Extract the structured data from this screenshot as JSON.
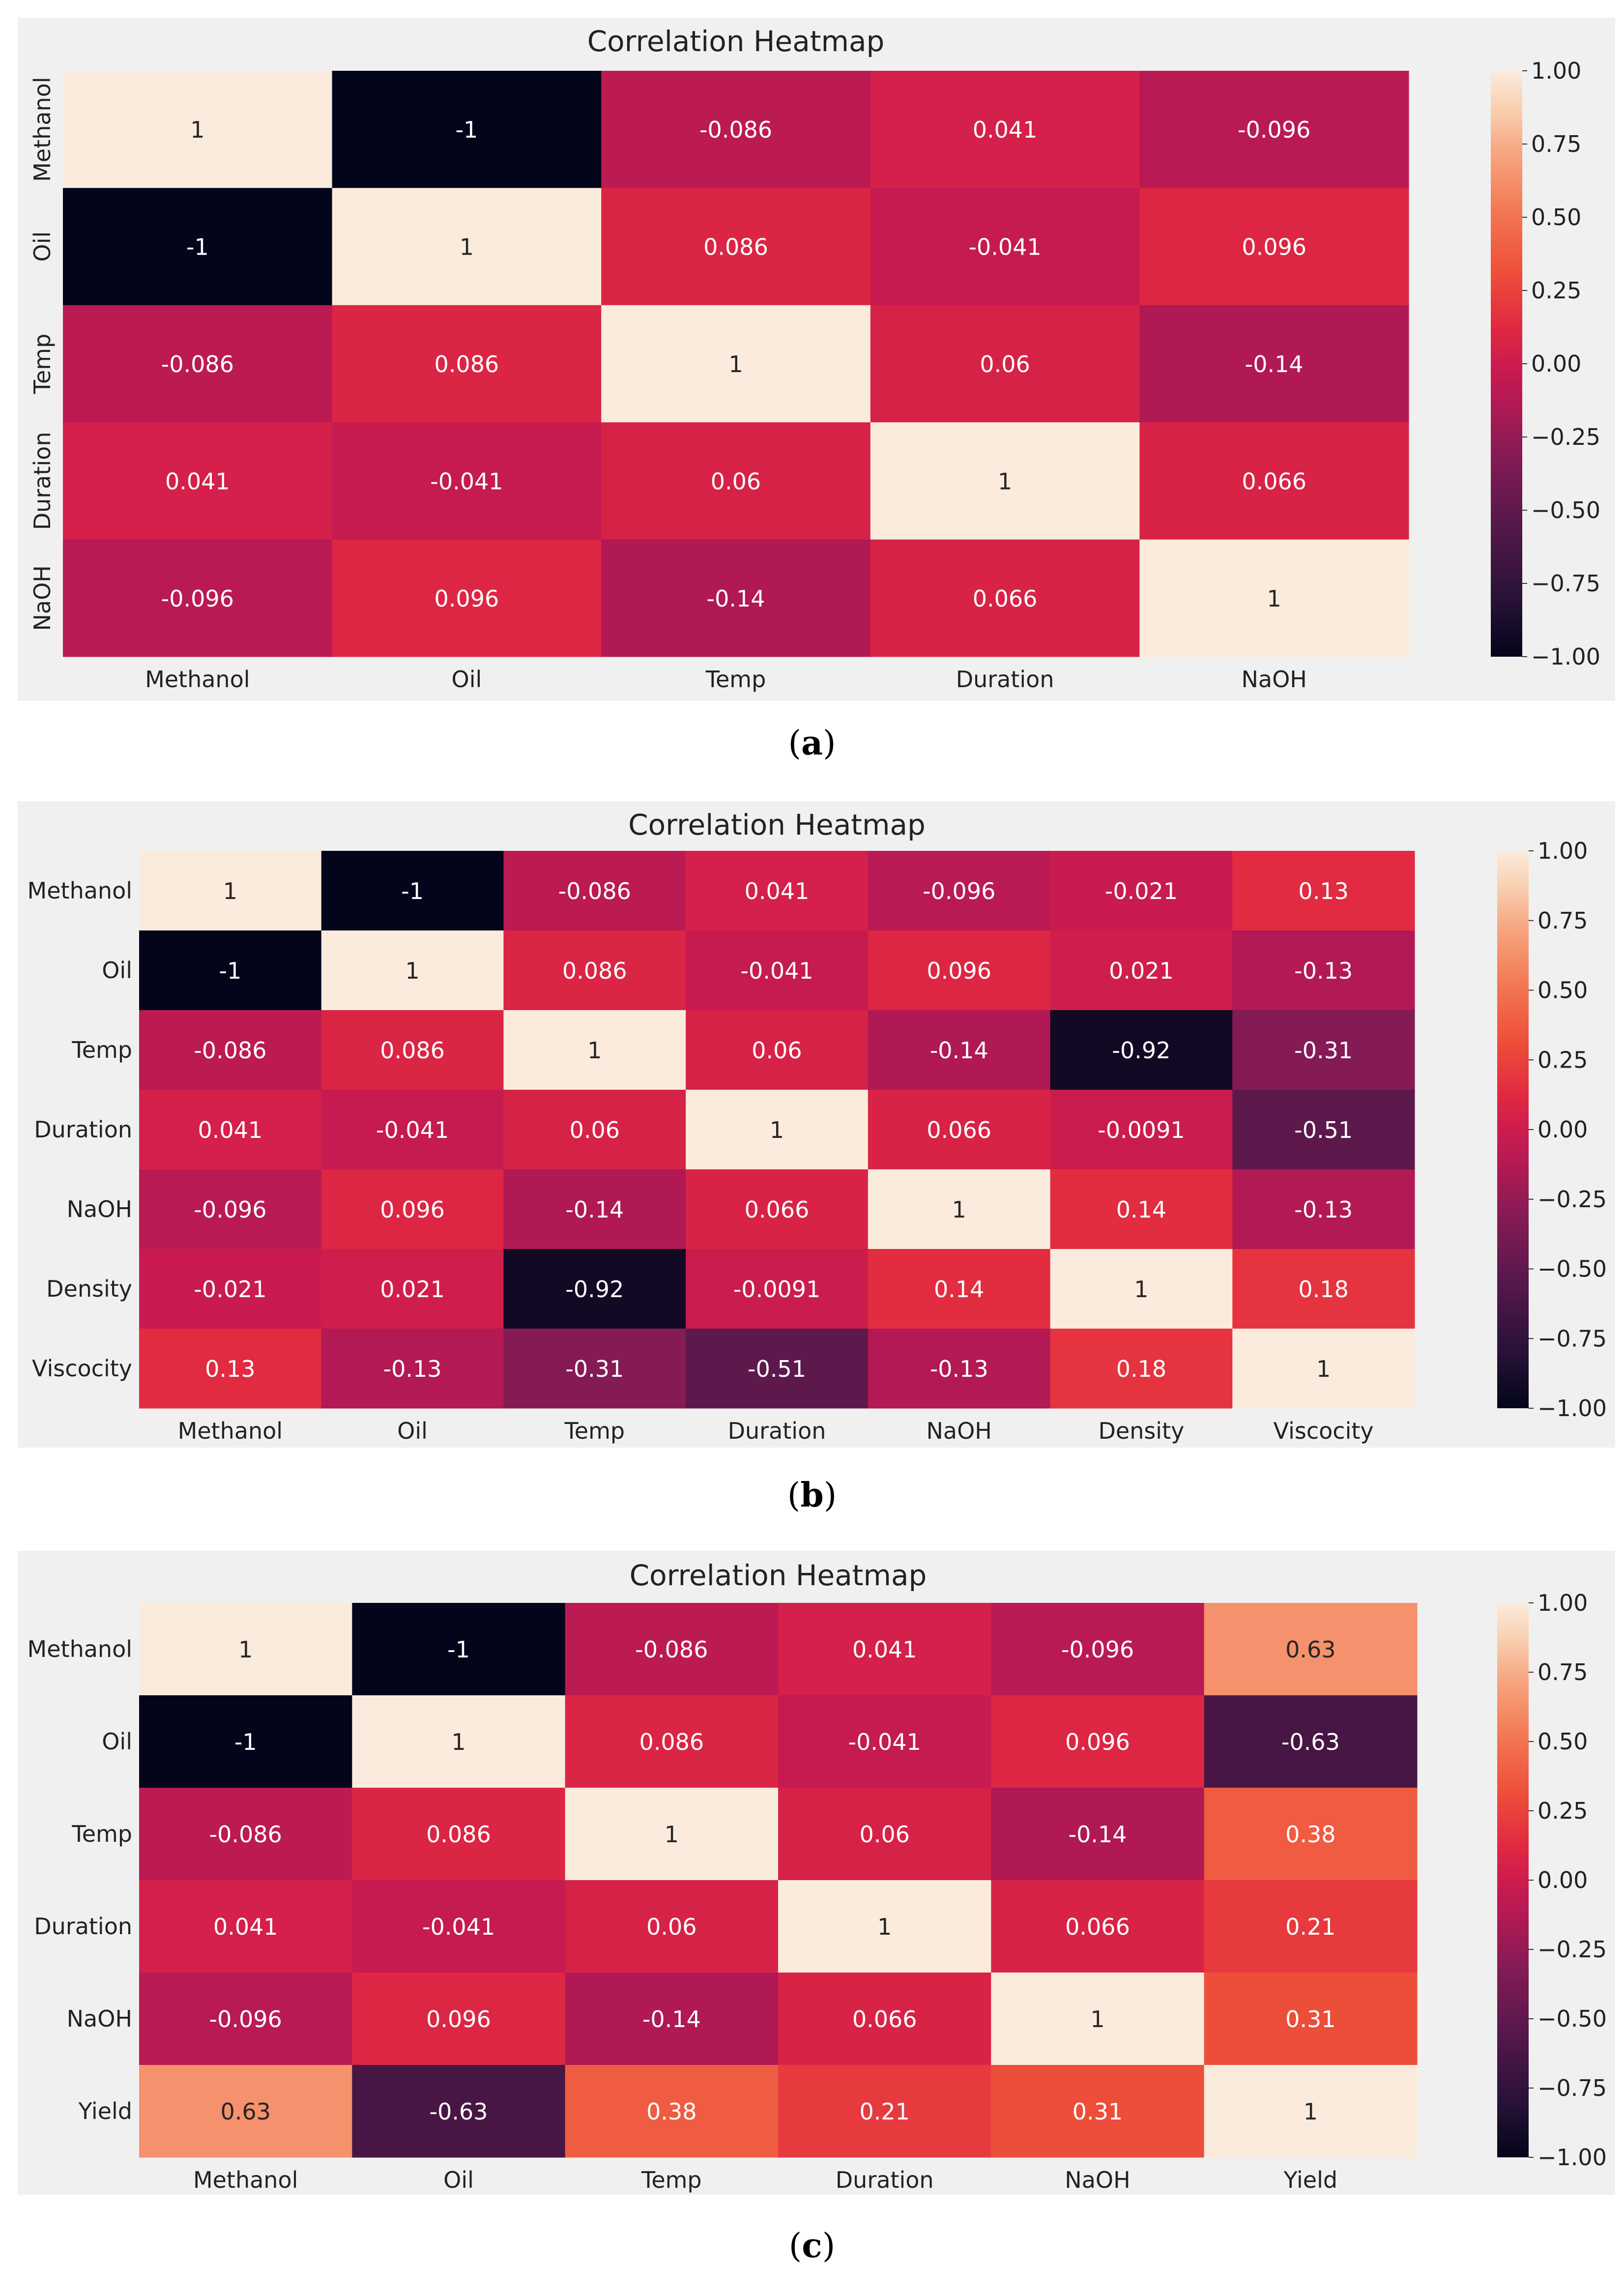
{
  "panels": [
    {
      "caption_label": "a",
      "title": "Correlation Heatmap"
    },
    {
      "caption_label": "b",
      "title": "Correlation Heatmap"
    },
    {
      "caption_label": "c",
      "title": "Correlation Heatmap"
    }
  ],
  "chart_data": [
    {
      "type": "heatmap",
      "title": "Correlation Heatmap",
      "x_labels": [
        "Methanol",
        "Oil",
        "Temp",
        "Duration",
        "NaOH"
      ],
      "y_labels": [
        "Methanol",
        "Oil",
        "Temp",
        "Duration",
        "NaOH"
      ],
      "values": [
        [
          1,
          -1,
          -0.086,
          0.041,
          -0.096
        ],
        [
          -1,
          1,
          0.086,
          -0.041,
          0.096
        ],
        [
          -0.086,
          0.086,
          1,
          0.06,
          -0.14
        ],
        [
          0.041,
          -0.041,
          0.06,
          1,
          0.066
        ],
        [
          -0.096,
          0.096,
          -0.14,
          0.066,
          1
        ]
      ],
      "colorbar": {
        "min": -1.0,
        "max": 1.0,
        "ticks": [
          "1.00",
          "0.75",
          "0.50",
          "0.25",
          "0.00",
          "−0.25",
          "−0.50",
          "−0.75",
          "−1.00"
        ]
      },
      "colormap": "rocket"
    },
    {
      "type": "heatmap",
      "title": "Correlation Heatmap",
      "x_labels": [
        "Methanol",
        "Oil",
        "Temp",
        "Duration",
        "NaOH",
        "Density",
        "Viscocity"
      ],
      "y_labels": [
        "Methanol",
        "Oil",
        "Temp",
        "Duration",
        "NaOH",
        "Density",
        "Viscocity"
      ],
      "values": [
        [
          1,
          -1,
          -0.086,
          0.041,
          -0.096,
          -0.021,
          0.13
        ],
        [
          -1,
          1,
          0.086,
          -0.041,
          0.096,
          0.021,
          -0.13
        ],
        [
          -0.086,
          0.086,
          1,
          0.06,
          -0.14,
          -0.92,
          -0.31
        ],
        [
          0.041,
          -0.041,
          0.06,
          1,
          0.066,
          -0.0091,
          -0.51
        ],
        [
          -0.096,
          0.096,
          -0.14,
          0.066,
          1,
          0.14,
          -0.13
        ],
        [
          -0.021,
          0.021,
          -0.92,
          -0.0091,
          0.14,
          1,
          0.18
        ],
        [
          0.13,
          -0.13,
          -0.31,
          -0.51,
          -0.13,
          0.18,
          1
        ]
      ],
      "colorbar": {
        "min": -1.0,
        "max": 1.0,
        "ticks": [
          "1.00",
          "0.75",
          "0.50",
          "0.25",
          "0.00",
          "−0.25",
          "−0.50",
          "−0.75",
          "−1.00"
        ]
      },
      "colormap": "rocket"
    },
    {
      "type": "heatmap",
      "title": "Correlation Heatmap",
      "x_labels": [
        "Methanol",
        "Oil",
        "Temp",
        "Duration",
        "NaOH",
        "Yield"
      ],
      "y_labels": [
        "Methanol",
        "Oil",
        "Temp",
        "Duration",
        "NaOH",
        "Yield"
      ],
      "values": [
        [
          1,
          -1,
          -0.086,
          0.041,
          -0.096,
          0.63
        ],
        [
          -1,
          1,
          0.086,
          -0.041,
          0.096,
          -0.63
        ],
        [
          -0.086,
          0.086,
          1,
          0.06,
          -0.14,
          0.38
        ],
        [
          0.041,
          -0.041,
          0.06,
          1,
          0.066,
          0.21
        ],
        [
          -0.096,
          0.096,
          -0.14,
          0.066,
          1,
          0.31
        ],
        [
          0.63,
          -0.63,
          0.38,
          0.21,
          0.31,
          1
        ]
      ],
      "colorbar": {
        "min": -1.0,
        "max": 1.0,
        "ticks": [
          "1.00",
          "0.75",
          "0.50",
          "0.25",
          "0.00",
          "−0.25",
          "−0.50",
          "−0.75",
          "−1.00"
        ]
      },
      "colormap": "rocket"
    }
  ]
}
